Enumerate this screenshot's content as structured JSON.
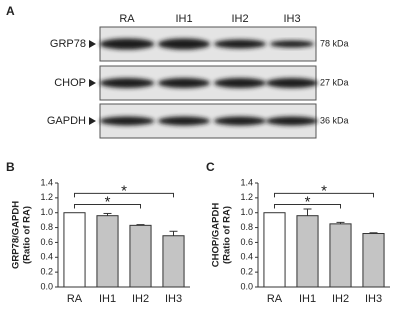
{
  "blot": {
    "label": "A",
    "lanes": [
      "RA",
      "IH1",
      "IH2",
      "IH3"
    ],
    "rows": [
      {
        "name": "GRP78",
        "size": "78 kDa"
      },
      {
        "name": "CHOP",
        "size": "27 kDa"
      },
      {
        "name": "GAPDH",
        "size": "36 kDa"
      }
    ]
  },
  "chart_data": [
    {
      "type": "bar",
      "label": "B",
      "ylabel": [
        "GRP78/GAPDH",
        "(Ratio of RA)"
      ],
      "categories": [
        "RA",
        "IH1",
        "IH2",
        "IH3"
      ],
      "values": [
        1.0,
        0.96,
        0.83,
        0.69
      ],
      "errors": [
        0,
        0.03,
        0.01,
        0.06
      ],
      "colors": [
        "#ffffff",
        "#c4c4c4",
        "#c4c4c4",
        "#c4c4c4"
      ],
      "ylim": [
        0,
        1.4
      ],
      "yticks": [
        {
          "value": 0,
          "label": "0.0"
        },
        0.2,
        0.4,
        0.6,
        0.8,
        {
          "value": 1,
          "label": "1.0"
        },
        1.2,
        1.4
      ],
      "annotations": [
        "*",
        "*"
      ]
    },
    {
      "type": "bar",
      "label": "C",
      "ylabel": [
        "CHOP/GAPDH",
        "(Ratio of RA)"
      ],
      "categories": [
        "RA",
        "IH1",
        "IH2",
        "IH3"
      ],
      "values": [
        1.0,
        0.96,
        0.85,
        0.72
      ],
      "errors": [
        0,
        0.09,
        0.02,
        0.01
      ],
      "colors": [
        "#ffffff",
        "#c4c4c4",
        "#c4c4c4",
        "#c4c4c4"
      ],
      "ylim": [
        0,
        1.4
      ],
      "yticks": [
        {
          "value": 0,
          "label": "0.0"
        },
        0.2,
        0.4,
        0.6,
        0.8,
        {
          "value": 1,
          "label": "1.0"
        },
        1.2,
        1.4
      ],
      "annotations": [
        "*",
        "*"
      ]
    }
  ]
}
